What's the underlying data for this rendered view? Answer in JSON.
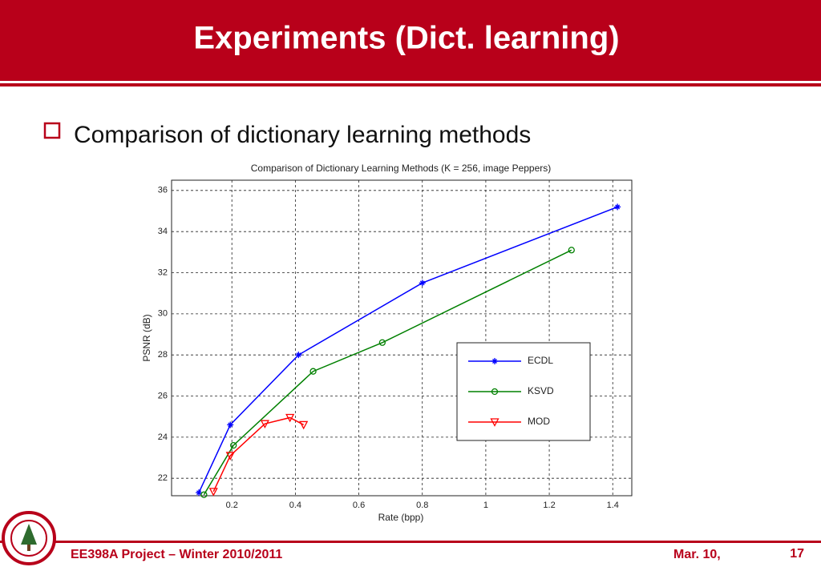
{
  "header": {
    "title": "Experiments (Dict. learning)"
  },
  "bullet": "Comparison of dictionary learning methods",
  "chart_data": {
    "type": "line",
    "title": "Comparison of Dictionary Learning Methods (K = 256, image Peppers)",
    "x_label": "Rate (bpp)",
    "y_label": "PSNR (dB)",
    "xlim": [
      0.01,
      1.46
    ],
    "ylim": [
      21.15,
      36.5
    ],
    "xticks": [
      0.2,
      0.4,
      0.6,
      0.8,
      1,
      1.2,
      1.4
    ],
    "yticks": [
      22,
      24,
      26,
      28,
      30,
      32,
      34,
      36
    ],
    "grid": true,
    "legend": "center right",
    "series": [
      {
        "name": "ECDL",
        "color": "#0000ff",
        "marker": "plus",
        "x": [
          0.096,
          0.195,
          0.41,
          0.8,
          1.415
        ],
        "values": [
          21.3,
          24.6,
          28.0,
          31.5,
          35.2
        ]
      },
      {
        "name": "KSVD",
        "color": "#008000",
        "marker": "circle",
        "x": [
          0.112,
          0.205,
          0.456,
          0.674,
          1.27
        ],
        "values": [
          21.2,
          23.6,
          27.2,
          28.6,
          33.1
        ]
      },
      {
        "name": "MOD",
        "color": "#ff0000",
        "marker": "triangle-down",
        "x": [
          0.142,
          0.195,
          0.304,
          0.383,
          0.426
        ],
        "values": [
          21.35,
          23.1,
          24.65,
          24.95,
          24.6
        ]
      }
    ]
  },
  "footer": {
    "left": "EE398A Project – Winter 2010/2011",
    "date": "Mar. 10,",
    "page": "17"
  }
}
